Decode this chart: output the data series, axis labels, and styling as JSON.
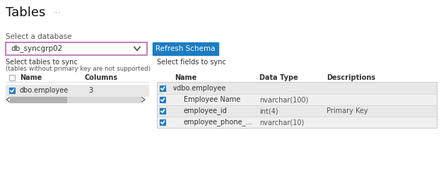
{
  "title": "Tables",
  "title_dots": "···",
  "bg_color": "#ffffff",
  "section_label_db": "Select a database",
  "dropdown_text": "db_syncgrp02",
  "dropdown_border": "#c084c0",
  "dropdown_bg": "#ffffff",
  "button_text": "Refresh Schema",
  "button_bg": "#1a7dc4",
  "button_fg": "#ffffff",
  "left_section_label1": "Select tables to sync",
  "left_section_label2": "(tables without primary key are not supported)",
  "left_col_headers": [
    "Name",
    "Columns"
  ],
  "left_rows": [
    [
      "dbo.employee",
      "3"
    ]
  ],
  "left_row_bg": "#e8e8e8",
  "right_section_label": "Select fields to sync",
  "right_col_headers": [
    "Name",
    "Data Type",
    "Descriptions"
  ],
  "right_rows": [
    {
      "indent": 0,
      "name": "∨dbo.employee",
      "dtype": "",
      "desc": "",
      "bg": "#e8e8e8"
    },
    {
      "indent": 1,
      "name": "Employee Name",
      "dtype": "nvarchar(100)",
      "desc": "",
      "bg": "#f0f0f0"
    },
    {
      "indent": 1,
      "name": "employee_id",
      "dtype": "int(4)",
      "desc": "Primary Key",
      "bg": "#e8e8e8"
    },
    {
      "indent": 1,
      "name": "employee_phone_...",
      "dtype": "nvarchar(10)",
      "desc": "",
      "bg": "#f0f0f0"
    }
  ],
  "checkbox_blue": "#1a7dc4",
  "checkbox_empty": "#ffffff",
  "text_color": "#333333",
  "label_color": "#555555",
  "header_bold": true
}
